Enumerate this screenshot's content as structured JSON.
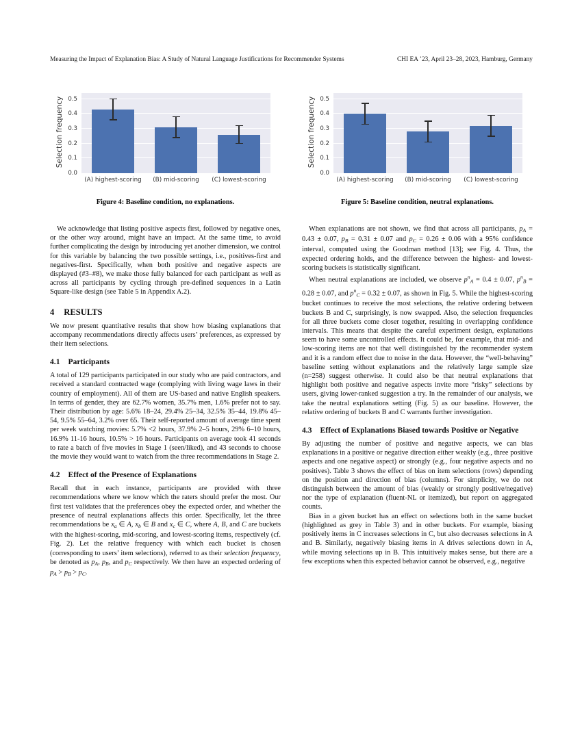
{
  "header": {
    "left": "Measuring the Impact of Explanation Bias: A Study of Natural Language Justifications for Recommender Systems",
    "right": "CHI EA ’23, April 23–28, 2023, Hamburg, Germany"
  },
  "figures": [
    {
      "caption": "Figure 4: Baseline condition, no explanations.",
      "chart_data": {
        "type": "bar",
        "title": "",
        "xlabel": "",
        "ylabel": "Selection frequency",
        "categories": [
          "(A) highest-scoring",
          "(B) mid-scoring",
          "(C) lowest-scoring"
        ],
        "values": [
          0.43,
          0.31,
          0.26
        ],
        "errors_low": [
          0.36,
          0.24,
          0.2
        ],
        "errors_high": [
          0.5,
          0.38,
          0.32
        ],
        "yticks": [
          0.0,
          0.1,
          0.2,
          0.3,
          0.4,
          0.5
        ],
        "ylim": [
          0,
          0.54
        ],
        "grid": true,
        "legend": false,
        "bar_color": "#4c72b0",
        "plot_bg": "#eaeaf2",
        "grid_color": "#ffffff"
      }
    },
    {
      "caption": "Figure 5: Baseline condition, neutral explanations.",
      "chart_data": {
        "type": "bar",
        "title": "",
        "xlabel": "",
        "ylabel": "Selection frequency",
        "categories": [
          "(A) highest-scoring",
          "(B) mid-scoring",
          "(C) lowest-scoring"
        ],
        "values": [
          0.4,
          0.28,
          0.32
        ],
        "errors_low": [
          0.33,
          0.21,
          0.25
        ],
        "errors_high": [
          0.47,
          0.35,
          0.39
        ],
        "yticks": [
          0.0,
          0.1,
          0.2,
          0.3,
          0.4,
          0.5
        ],
        "ylim": [
          0,
          0.54
        ],
        "grid": true,
        "legend": false,
        "bar_color": "#4c72b0",
        "plot_bg": "#eaeaf2",
        "grid_color": "#ffffff"
      }
    }
  ],
  "columns": {
    "left": [
      {
        "type": "p",
        "indent": true,
        "runs": [
          "We acknowledge that listing positive aspects first, followed by negative ones, or the other way around, might have an impact. At the same time, to avoid further complicating the design by introducing yet another dimension, we control for this variable by balancing the two possible settings, i.e., positives-first and negatives-first. Specifically, when both positive and negative aspects are displayed (#3–#8), we make those fully balanced for each participant as well as across all participants by cycling through pre-defined sequences in a Latin Square-like design (see Table 5 in Appendix A.2)."
        ]
      },
      {
        "type": "h1",
        "number": "4",
        "title": "RESULTS"
      },
      {
        "type": "p",
        "indent": false,
        "runs": [
          "We now present quantitative results that show how biasing explanations that accompany recommendations directly affects users’ preferences, as expressed by their item selections."
        ]
      },
      {
        "type": "h2",
        "number": "4.1",
        "title": "Participants"
      },
      {
        "type": "p",
        "indent": false,
        "runs": [
          "A total of 129 participants participated in our study who are paid contractors, and received a standard contracted wage (complying with living wage laws in their country of employment). All of them are US-based and native English speakers. In terms of gender, they are 62.7% women, 35.7% men, 1.6% prefer not to say. Their distribution by age: 5.6% 18–24, 29.4% 25–34, 32.5% 35–44, 19.8% 45–54, 9.5% 55–64, 3.2% over 65. Their self-reported amount of average time spent per week watching movies: 5.7% <2 hours, 37.9% 2–5 hours, 29% 6–10 hours, 16.9% 11-16 hours, 10.5% > 16 hours. Participants on average took 41 seconds to rate a batch of five movies in Stage 1 (seen/liked), and 43 seconds to choose the movie they would want to watch from the three recommendations in Stage 2."
        ]
      },
      {
        "type": "h2",
        "number": "4.2",
        "title": "Effect of the Presence of Explanations"
      },
      {
        "type": "p",
        "indent": false,
        "runs": [
          "Recall that in each instance, participants are provided with three recommendations where we know which the raters should prefer the most. Our first test validates that the preferences obey the expected order, and whether the presence of neutral explanations affects this order. Specifically, let the three recommendations be ",
          {
            "i": "x",
            "sub": "a"
          },
          " ∈ ",
          {
            "i": "A"
          },
          ", ",
          {
            "i": "x",
            "sub": "b"
          },
          " ∈ ",
          {
            "i": "B"
          },
          " and ",
          {
            "i": "x",
            "sub": "c"
          },
          " ∈ ",
          {
            "i": "C"
          },
          ", where ",
          {
            "i": "A"
          },
          ", ",
          {
            "i": "B"
          },
          ", and ",
          {
            "i": "C"
          },
          " are buckets with the highest-scoring, mid-scoring, and lowest-scoring items, respectively (cf. Fig. 2). Let the relative frequency with which each bucket is chosen (corresponding to users’ item selections), referred to as their ",
          {
            "i": "selection frequency"
          },
          ", be denoted as ",
          {
            "i": "p",
            "sub": "A"
          },
          ", ",
          {
            "i": "p",
            "sub": "B"
          },
          ", and ",
          {
            "i": "p",
            "sub": "C"
          },
          " respectively. We then have an expected ordering of ",
          {
            "i": "p",
            "sub": "A"
          },
          " > ",
          {
            "i": "p",
            "sub": "B"
          },
          " > ",
          {
            "i": "p",
            "sub": "C"
          },
          "."
        ]
      }
    ],
    "right": [
      {
        "type": "p",
        "indent": true,
        "runs": [
          "When explanations are not shown, we find that across all participants, ",
          {
            "i": "p",
            "sub": "A"
          },
          " = 0.43 ± 0.07, ",
          {
            "i": "p",
            "sub": "B"
          },
          " = 0.31 ± 0.07 and ",
          {
            "i": "p",
            "sub": "C"
          },
          " = 0.26 ± 0.06 with a 95% confidence interval, computed using the Goodman method [13]; see Fig. 4. Thus, the expected ordering holds, and the difference between the highest- and lowest-scoring buckets is statistically significant."
        ]
      },
      {
        "type": "p",
        "indent": true,
        "runs": [
          "When neutral explanations are included, we observe ",
          {
            "i": "p",
            "sup": "n",
            "sub": "A"
          },
          " = 0.4 ± 0.07, ",
          {
            "i": "p",
            "sup": "n",
            "sub": "B"
          },
          " = 0.28 ± 0.07, and ",
          {
            "i": "p",
            "sup": "n",
            "sub": "C"
          },
          " = 0.32 ± 0.07, as shown in Fig. 5. While the highest-scoring bucket continues to receive the most selections, the relative ordering between buckets B and C, surprisingly, is now swapped. Also, the selection frequencies for all three buckets come closer together, resulting in overlapping confidence intervals. This means that despite the careful experiment design, explanations seem to have some uncontrolled effects. It could be, for example, that mid- and low-scoring items are not that well distinguished by the recommender system and it is a random effect due to noise in the data. However, the “well-behaving” baseline setting without explanations and the relatively large sample size (n=258) suggest otherwise. It could also be that neutral explanations that highlight both positive and negative aspects invite more “risky” selections by users, giving lower-ranked suggestion a try. In the remainder of our analysis, we take the neutral explanations setting (Fig. 5) as our baseline. However, the relative ordering of buckets B and C warrants further investigation."
        ]
      },
      {
        "type": "h2",
        "number": "4.3",
        "title": "Effect of Explanations Biased towards Positive or Negative"
      },
      {
        "type": "p",
        "indent": false,
        "runs": [
          "By adjusting the number of positive and negative aspects, we can bias explanations in a positive or negative direction either weakly (e.g., three positive aspects and one negative aspect) or strongly (e.g., four negative aspects and no positives). Table 3 shows the effect of bias on item selections (rows) depending on the position and direction of bias (columns). For simplicity, we do not distinguish between the amount of bias (weakly or strongly positive/negative) nor the type of explanation (fluent-NL or itemized), but report on aggregated counts."
        ]
      },
      {
        "type": "p",
        "indent": true,
        "runs": [
          "Bias in a given bucket has an effect on selections both in the same bucket (highlighted as grey in Table 3) and in other buckets. For example, biasing positively items in C increases selections in C, but also decreases selections in A and B. Similarly, negatively biasing items in A drives selections down in A, while moving selections up in B. This intuitively makes sense, but there are a few exceptions when this expected behavior cannot be observed, e.g., negative"
        ]
      }
    ]
  }
}
